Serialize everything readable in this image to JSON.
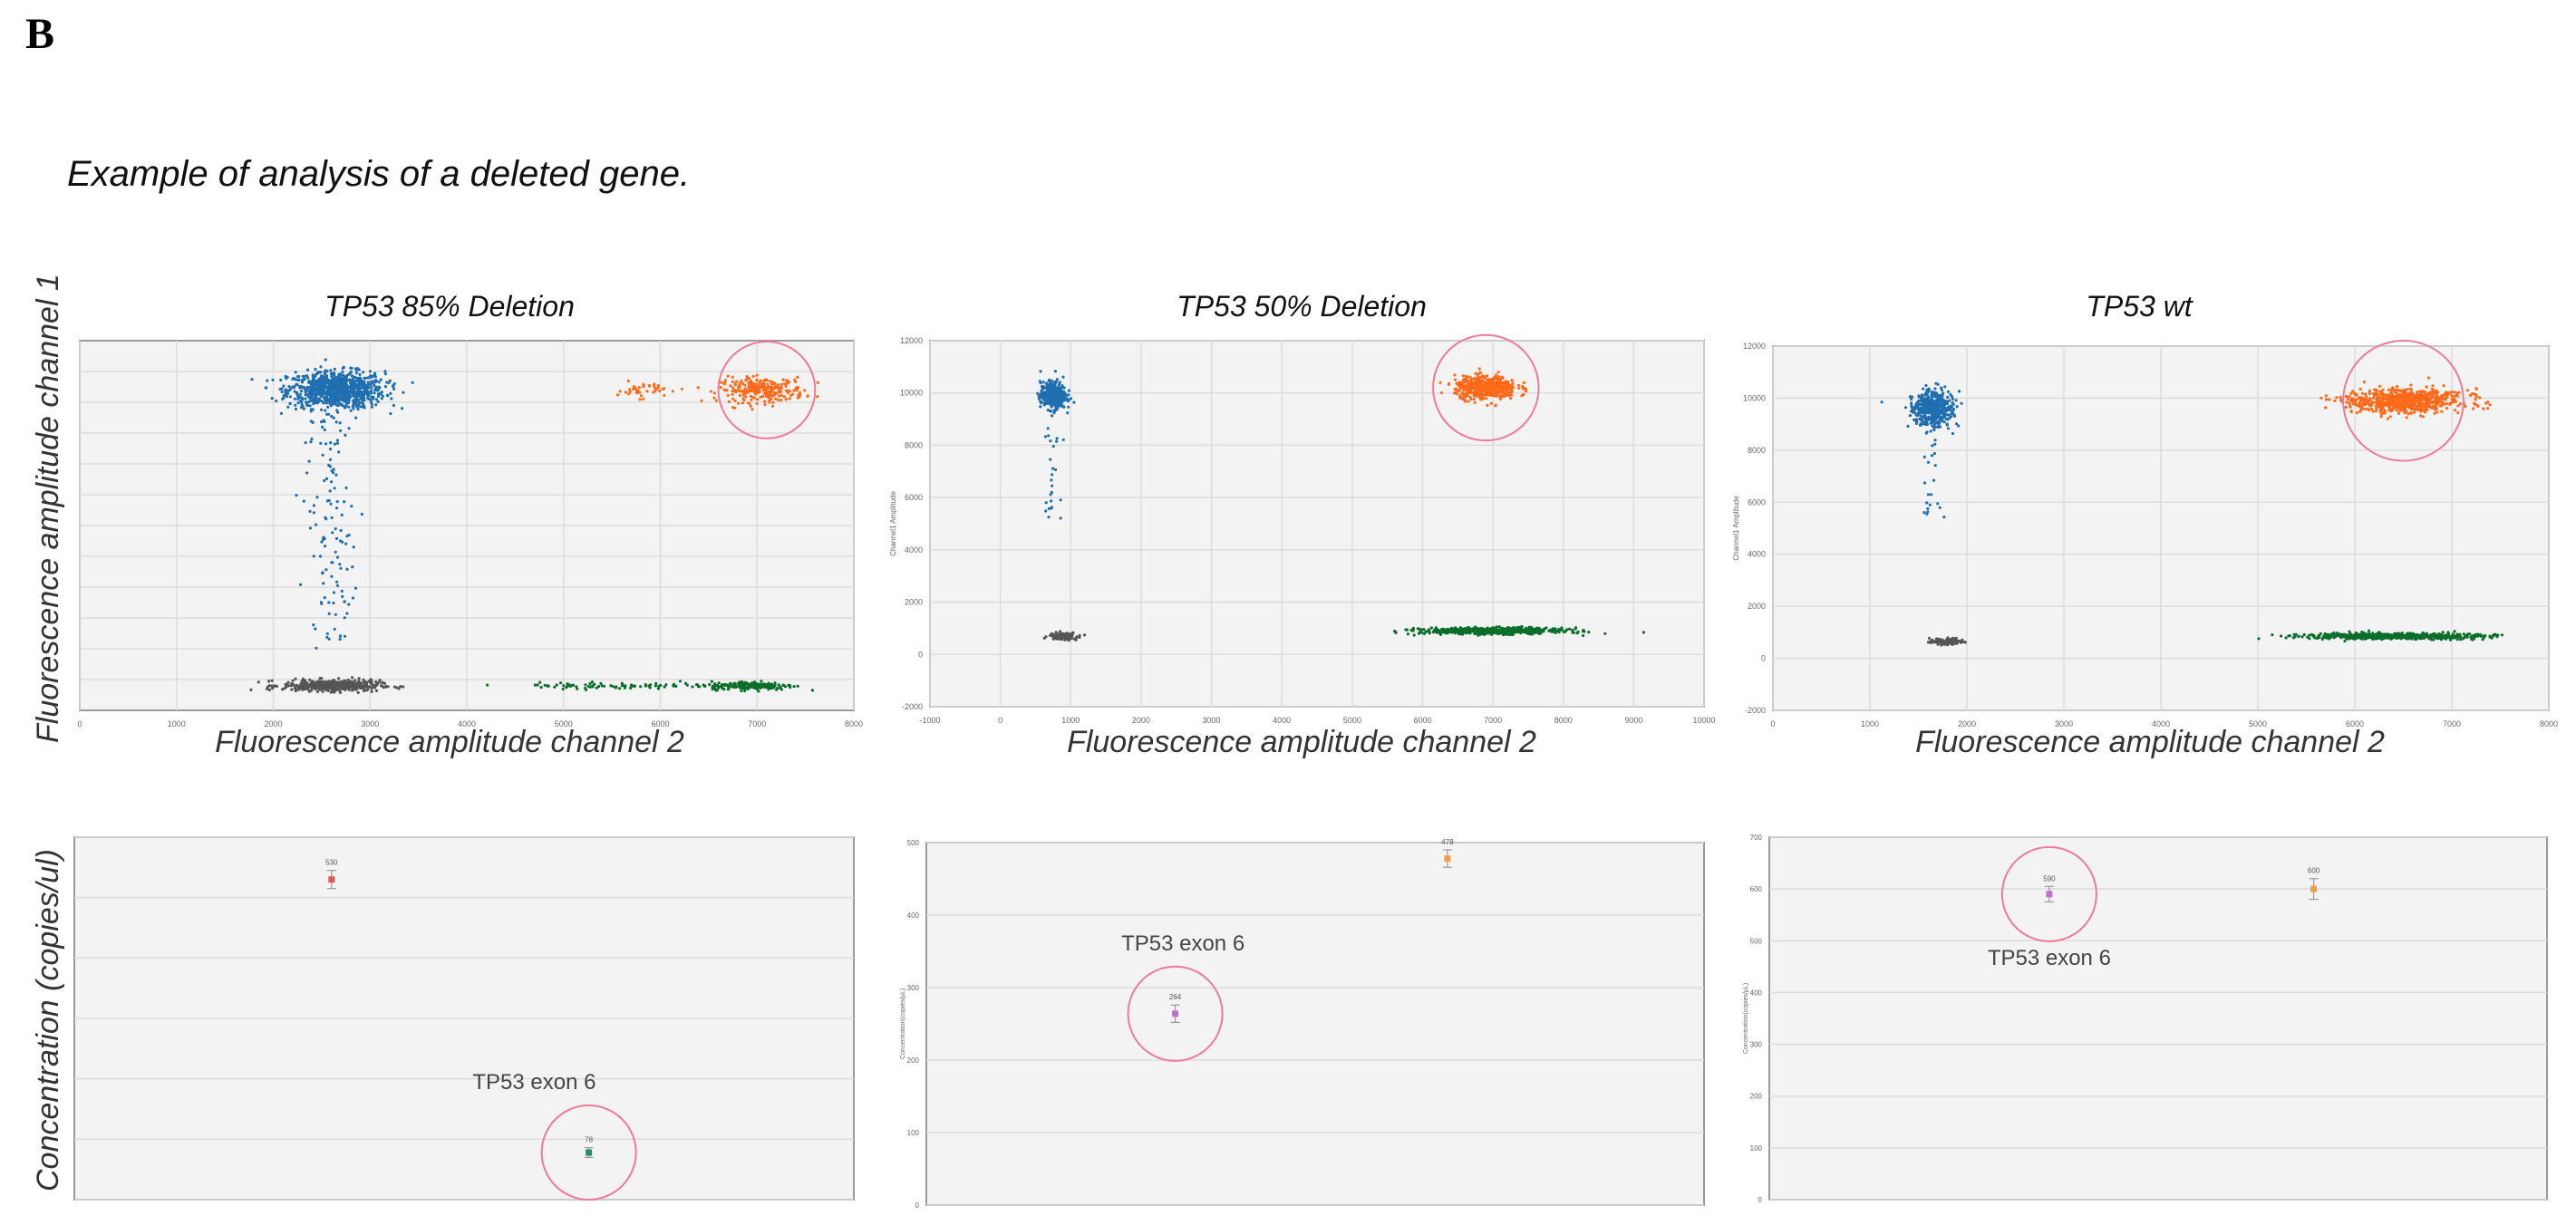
{
  "figure": {
    "panel_letter": "B",
    "subtitle": "Example of analysis of a deleted gene.",
    "y_label_top": "Fluorescence amplitude channel 1",
    "y_label_bottom": "Concentration (copies/ul)",
    "x_label": "Fluorescence amplitude channel 2",
    "inner_y_label": "Channel1 Amplitude",
    "inner_conc_label": "Concentration(copies/µL)"
  },
  "colors": {
    "blue": "#1f6fb0",
    "orange": "#ff6a1a",
    "green": "#0b6e2a",
    "gray": "#555555",
    "pink_circle": "#f07a9a",
    "plot_bg": "#f3f3f3",
    "grid": "#dcdcdc"
  },
  "chart_data": [
    {
      "type": "scatter",
      "title": "TP53 85% Deletion",
      "xlabel": "Fluorescence amplitude channel 2",
      "xlim": [
        0,
        8000
      ],
      "ylim": [
        0,
        12000
      ],
      "x_ticks": [
        0,
        1000,
        2000,
        3000,
        4000,
        5000,
        6000,
        7000,
        8000
      ],
      "y_ticks": [],
      "clusters": [
        {
          "name": "blue",
          "color": "#1f6fb0",
          "cx": 2650,
          "cy": 10400,
          "sx": 250,
          "sy": 300,
          "n": 900
        },
        {
          "name": "orange-main",
          "color": "#ff6a1a",
          "cx": 7050,
          "cy": 10400,
          "sx": 220,
          "sy": 200,
          "n": 260
        },
        {
          "name": "orange-small",
          "color": "#ff6a1a",
          "cx": 5800,
          "cy": 10400,
          "sx": 120,
          "sy": 130,
          "n": 40
        },
        {
          "name": "gray",
          "color": "#555555",
          "cx": 2600,
          "cy": 800,
          "sx": 250,
          "sy": 90,
          "n": 450
        },
        {
          "name": "green-main",
          "color": "#0b6e2a",
          "cx": 6950,
          "cy": 800,
          "sx": 220,
          "sy": 70,
          "n": 180
        },
        {
          "name": "green-trail",
          "color": "#0b6e2a",
          "cx": 5600,
          "cy": 800,
          "sx": 600,
          "sy": 50,
          "n": 90
        }
      ],
      "highlight_circle": {
        "x": 7100,
        "y": 10400,
        "r_x": 500
      }
    },
    {
      "type": "scatter",
      "title": "TP53 50% Deletion",
      "xlabel": "Fluorescence amplitude channel 2",
      "xlim": [
        -1000,
        10000
      ],
      "ylim": [
        -2000,
        12000
      ],
      "x_ticks": [
        -1000,
        0,
        1000,
        2000,
        3000,
        4000,
        5000,
        6000,
        7000,
        8000,
        9000,
        10000
      ],
      "y_ticks": [
        -2000,
        0,
        2000,
        4000,
        6000,
        8000,
        10000,
        12000
      ],
      "clusters": [
        {
          "name": "blue",
          "color": "#1f6fb0",
          "cx": 750,
          "cy": 9900,
          "sx": 90,
          "sy": 260,
          "n": 400
        },
        {
          "name": "orange",
          "color": "#ff6a1a",
          "cx": 6900,
          "cy": 10200,
          "sx": 220,
          "sy": 220,
          "n": 500
        },
        {
          "name": "gray",
          "color": "#555555",
          "cx": 900,
          "cy": 700,
          "sx": 100,
          "sy": 70,
          "n": 120
        },
        {
          "name": "green",
          "color": "#0b6e2a",
          "cx": 7000,
          "cy": 900,
          "sx": 500,
          "sy": 60,
          "n": 600
        }
      ],
      "highlight_circle": {
        "x": 6900,
        "y": 10200,
        "r_x": 750
      }
    },
    {
      "type": "scatter",
      "title": "TP53 wt",
      "xlabel": "Fluorescence amplitude channel 2",
      "xlim": [
        0,
        8000
      ],
      "ylim": [
        -2000,
        12000
      ],
      "x_ticks": [
        0,
        1000,
        2000,
        3000,
        4000,
        5000,
        6000,
        7000,
        8000
      ],
      "y_ticks": [
        -2000,
        0,
        2000,
        4000,
        6000,
        8000,
        10000,
        12000
      ],
      "clusters": [
        {
          "name": "blue",
          "color": "#1f6fb0",
          "cx": 1650,
          "cy": 9600,
          "sx": 110,
          "sy": 330,
          "n": 450
        },
        {
          "name": "orange",
          "color": "#ff6a1a",
          "cx": 6500,
          "cy": 9900,
          "sx": 300,
          "sy": 230,
          "n": 700
        },
        {
          "name": "gray",
          "color": "#555555",
          "cx": 1800,
          "cy": 650,
          "sx": 90,
          "sy": 70,
          "n": 100
        },
        {
          "name": "green",
          "color": "#0b6e2a",
          "cx": 6400,
          "cy": 850,
          "sx": 450,
          "sy": 55,
          "n": 650
        }
      ],
      "highlight_circle": {
        "x": 6500,
        "y": 9900,
        "r_x": 620
      }
    },
    {
      "type": "scatter",
      "panel": "concentration",
      "ylim": [
        0,
        600
      ],
      "points": [
        {
          "label": "530",
          "value": 530,
          "color": "#e05a5a",
          "err": 15
        },
        {
          "label": "78",
          "value": 78,
          "color": "#2a8a6a",
          "err": 8
        }
      ],
      "annotation": "TP53 exon 6",
      "highlight_point": 1
    },
    {
      "type": "scatter",
      "panel": "concentration",
      "ylim": [
        0,
        500
      ],
      "points": [
        {
          "label": "264",
          "value": 264,
          "color": "#c070d0",
          "err": 12
        },
        {
          "label": "478",
          "value": 478,
          "color": "#f0a040",
          "err": 12
        }
      ],
      "annotation": "TP53 exon 6",
      "highlight_point": 0
    },
    {
      "type": "scatter",
      "panel": "concentration",
      "ylim": [
        0,
        700
      ],
      "points": [
        {
          "label": "590",
          "value": 590,
          "color": "#c070d0",
          "err": 15
        },
        {
          "label": "600",
          "value": 600,
          "color": "#f0a040",
          "err": 20
        }
      ],
      "annotation": "TP53 exon 6",
      "highlight_point": 0
    }
  ]
}
